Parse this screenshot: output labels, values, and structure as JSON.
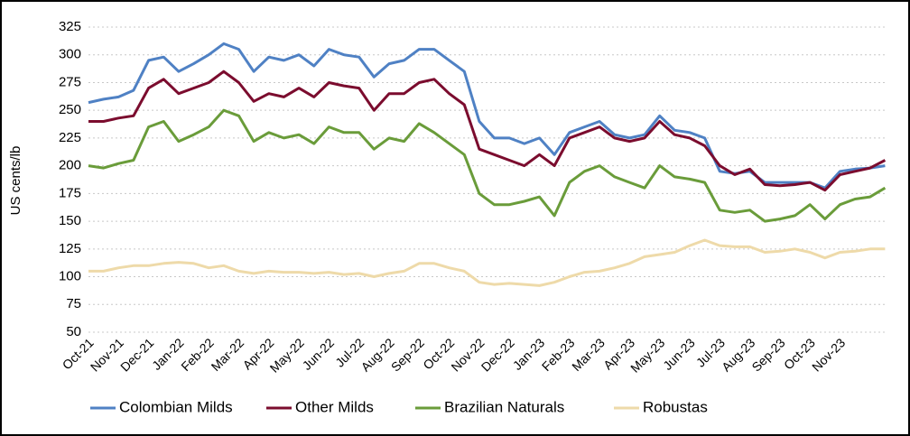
{
  "chart_data": {
    "type": "line",
    "y_label": "US cents/lb",
    "categories": [
      "Oct-21",
      null,
      "Nov-21",
      null,
      "Dec-21",
      null,
      "Jan-22",
      null,
      "Feb-22",
      null,
      "Mar-22",
      null,
      "Apr-22",
      null,
      "May-22",
      null,
      "Jun-22",
      null,
      "Jul-22",
      null,
      "Aug-22",
      null,
      "Sep-22",
      null,
      "Oct-22",
      null,
      "Nov-22",
      null,
      "Dec-22",
      null,
      "Jan-23",
      null,
      "Feb-23",
      null,
      "Mar-23",
      null,
      "Apr-23",
      null,
      "May-23",
      null,
      "Jun-23",
      null,
      "Jul-23",
      null,
      "Aug-23",
      null,
      "Sep-23",
      null,
      "Oct-23",
      null,
      "Nov-23",
      null,
      null,
      null
    ],
    "series": [
      {
        "name": "Colombian Milds",
        "color": "#4f81c4",
        "values": [
          257,
          260,
          262,
          268,
          295,
          298,
          285,
          292,
          300,
          310,
          305,
          285,
          298,
          295,
          300,
          290,
          305,
          300,
          298,
          280,
          292,
          295,
          305,
          305,
          295,
          285,
          240,
          225,
          225,
          220,
          225,
          210,
          230,
          235,
          240,
          228,
          225,
          228,
          245,
          232,
          230,
          225,
          195,
          193,
          195,
          185,
          185,
          185,
          185,
          180,
          195,
          197,
          198,
          200
        ]
      },
      {
        "name": "Other Milds",
        "color": "#7b0c2e",
        "values": [
          240,
          240,
          243,
          245,
          270,
          278,
          265,
          270,
          275,
          285,
          275,
          258,
          265,
          262,
          270,
          262,
          275,
          272,
          270,
          250,
          265,
          265,
          275,
          278,
          265,
          255,
          215,
          210,
          205,
          200,
          210,
          200,
          225,
          230,
          235,
          225,
          222,
          225,
          240,
          228,
          225,
          218,
          200,
          192,
          197,
          183,
          182,
          183,
          185,
          178,
          192,
          195,
          198,
          205
        ]
      },
      {
        "name": "Brazilian Naturals",
        "color": "#6a9c3a",
        "values": [
          200,
          198,
          202,
          205,
          235,
          240,
          222,
          228,
          235,
          250,
          245,
          222,
          230,
          225,
          228,
          220,
          235,
          230,
          230,
          215,
          225,
          222,
          238,
          230,
          220,
          210,
          175,
          165,
          165,
          168,
          172,
          155,
          185,
          195,
          200,
          190,
          185,
          180,
          200,
          190,
          188,
          185,
          160,
          158,
          160,
          150,
          152,
          155,
          165,
          152,
          165,
          170,
          172,
          180
        ]
      },
      {
        "name": "Robustas",
        "color": "#eedaa9",
        "values": [
          105,
          105,
          108,
          110,
          110,
          112,
          113,
          112,
          108,
          110,
          105,
          103,
          105,
          104,
          104,
          103,
          104,
          102,
          103,
          100,
          103,
          105,
          112,
          112,
          108,
          105,
          95,
          93,
          94,
          93,
          92,
          95,
          100,
          104,
          105,
          108,
          112,
          118,
          120,
          122,
          128,
          133,
          128,
          127,
          127,
          122,
          123,
          125,
          122,
          117,
          122,
          123,
          125,
          125
        ]
      }
    ],
    "ylim": [
      50,
      325
    ],
    "yticks": [
      50,
      75,
      100,
      125,
      150,
      175,
      200,
      225,
      250,
      275,
      300,
      325
    ],
    "grid": true
  }
}
